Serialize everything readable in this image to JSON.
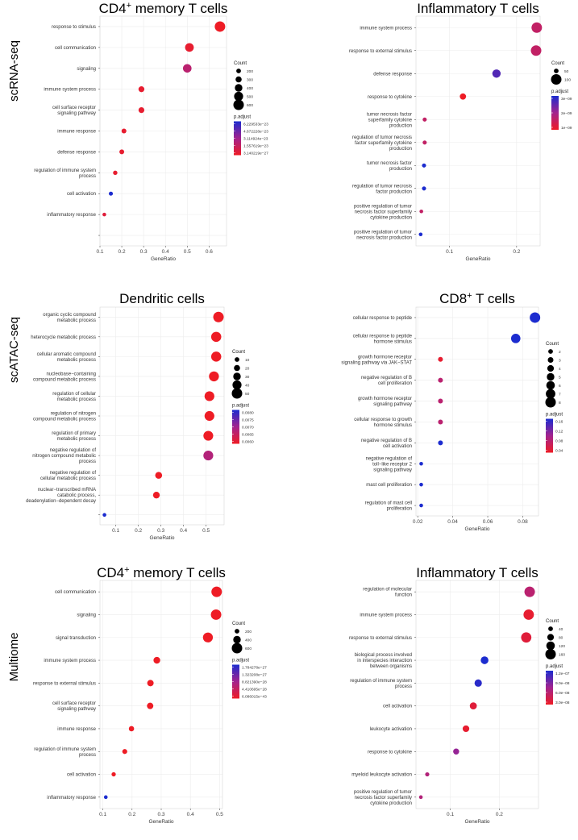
{
  "row_labels": [
    "scRNA-seq",
    "scATAC-seq",
    "Multiome"
  ],
  "colors": {
    "low_padj": "#ee1c25",
    "mid_padj": "#a3238e",
    "high_padj": "#1c2ccf"
  },
  "chart_data": [
    {
      "type": "scatter",
      "row": "scRNA-seq",
      "title": "CD4+ memory T cells",
      "title_main": "CD4",
      "title_sup": "+",
      "title_rest": " memory T cells",
      "xlabel": "GeneRatio",
      "xlim": [
        0.1,
        0.68
      ],
      "xticks": [
        0.1,
        0.2,
        0.3,
        0.4,
        0.5,
        0.6
      ],
      "tick_labels": [
        "0.1",
        "0.2",
        "0.3",
        "0.4",
        "0.5",
        "0.6"
      ],
      "categories": [
        [
          "response to stimulus"
        ],
        [
          "cell communication"
        ],
        [
          "signaling"
        ],
        [
          "immune system process"
        ],
        [
          "cell surface receptor",
          "signaling pathway"
        ],
        [
          "immune response"
        ],
        [
          "defense response"
        ],
        [
          "regulation of immune system",
          "process"
        ],
        [
          "cell activation"
        ],
        [
          "inflammatory response"
        ],
        [
          ""
        ]
      ],
      "x": [
        0.65,
        0.51,
        0.5,
        0.29,
        0.29,
        0.21,
        0.2,
        0.17,
        0.15,
        0.12
      ],
      "count": [
        650,
        510,
        500,
        290,
        285,
        210,
        205,
        170,
        150,
        120
      ],
      "padj_level": [
        0.0,
        0.05,
        0.35,
        0.05,
        0.05,
        0.05,
        0.05,
        0.05,
        1.0,
        0.1
      ],
      "legend": {
        "count_title": "Count",
        "count_labels": [
          "200",
          "300",
          "400",
          "500",
          "600"
        ],
        "padj_title": "p.adjust",
        "padj_labels": [
          "6.229533e−23",
          "4.672228e−23",
          "3.114924e−23",
          "1.557619e−23",
          "3.140219e−27"
        ]
      }
    },
    {
      "type": "scatter",
      "row": "scRNA-seq",
      "title": "Inflammatory T cells",
      "title_main": "Inflammatory T cells",
      "title_sup": "",
      "title_rest": "",
      "xlabel": "GeneRatio",
      "xlim": [
        0.05,
        0.235
      ],
      "xticks": [
        0.1,
        0.2
      ],
      "tick_labels": [
        "0.1",
        "0.2"
      ],
      "categories": [
        [
          "immune system process"
        ],
        [
          "response to external stimulus"
        ],
        [
          "defense response"
        ],
        [
          "response to cytokine"
        ],
        [
          "tumor necrosis factor",
          "superfamily cytokine",
          "production"
        ],
        [
          "regulation of tumor necrosis",
          "factor superfamily cytokine",
          "production"
        ],
        [
          "tumor necrosis factor",
          "production"
        ],
        [
          "regulation of tumor necrosis",
          "factor production"
        ],
        [
          "positive regulation of tumor",
          "necrosis factor superfamily",
          "cytokine production"
        ],
        [
          "positive regulation of tumor",
          "necrosis factor production"
        ]
      ],
      "x": [
        0.23,
        0.229,
        0.17,
        0.12,
        0.063,
        0.063,
        0.062,
        0.062,
        0.058,
        0.057
      ],
      "count": [
        110,
        110,
        85,
        60,
        35,
        35,
        35,
        35,
        30,
        30
      ],
      "padj_level": [
        0.3,
        0.3,
        0.8,
        0.0,
        0.3,
        0.3,
        1.0,
        1.0,
        0.3,
        1.0
      ],
      "legend": {
        "count_title": "Count",
        "count_labels": [
          "50",
          "100"
        ],
        "padj_title": "p.adjust",
        "padj_labels": [
          "3e−09",
          "2e−09",
          "1e−09"
        ]
      }
    },
    {
      "type": "scatter",
      "row": "scATAC-seq",
      "title": "Dendritic cells",
      "title_main": "Dendritic cells",
      "title_sup": "",
      "title_rest": "",
      "xlabel": "GeneRatio",
      "xlim": [
        0.03,
        0.58
      ],
      "xticks": [
        0.1,
        0.2,
        0.3,
        0.4,
        0.5
      ],
      "tick_labels": [
        "0.1",
        "0.2",
        "0.3",
        "0.4",
        "0.5"
      ],
      "categories": [
        [
          "organic cyclic compound",
          "metabolic process"
        ],
        [
          "heterocycle metabolic process"
        ],
        [
          "cellular aromatic compound",
          "metabolic process"
        ],
        [
          "nucleobase−containing",
          "compound metabolic process"
        ],
        [
          "regulation of cellular",
          "metabolic process"
        ],
        [
          "regulation of nitrogen",
          "compound metabolic process"
        ],
        [
          "regulation of primary",
          "metabolic process"
        ],
        [
          "negative regulation of",
          "nitrogen compound metabolic",
          "process"
        ],
        [
          "negative regulation of",
          "cellular metabolic process"
        ],
        [
          "nuclear−transcribed mRNA",
          "catabolic process,",
          "deadenylation−dependent decay"
        ],
        [
          ""
        ]
      ],
      "x": [
        0.555,
        0.545,
        0.545,
        0.535,
        0.515,
        0.515,
        0.51,
        0.51,
        0.29,
        0.28,
        0.05
      ],
      "count": [
        55,
        52,
        52,
        51,
        50,
        50,
        50,
        50,
        28,
        27,
        4
      ],
      "padj_level": [
        0.0,
        0.0,
        0.0,
        0.0,
        0.0,
        0.0,
        0.0,
        0.4,
        0.0,
        0.0,
        1.0
      ],
      "legend": {
        "count_title": "Count",
        "count_labels": [
          "10",
          "20",
          "30",
          "40",
          "50"
        ],
        "padj_title": "p.adjust",
        "padj_labels": [
          "0.0080",
          "0.0075",
          "0.0070",
          "0.0065",
          "0.0060"
        ]
      }
    },
    {
      "type": "scatter",
      "row": "scATAC-seq",
      "title": "CD8+ T cells",
      "title_main": "CD8",
      "title_sup": "+",
      "title_rest": " T cells",
      "xlabel": "GeneRatio",
      "xlim": [
        0.019,
        0.089
      ],
      "xticks": [
        0.02,
        0.04,
        0.06,
        0.08
      ],
      "tick_labels": [
        "0.02",
        "0.04",
        "0.06",
        "0.08"
      ],
      "categories": [
        [
          "cellular response to peptide"
        ],
        [
          "cellular response to peptide",
          "hormone stimulus"
        ],
        [
          "growth hormone receptor",
          "signaling pathway via JAK−STAT"
        ],
        [
          "negative regulation of B",
          "cell proliferation"
        ],
        [
          "growth hormone receptor",
          "signaling pathway"
        ],
        [
          "cellular response to growth",
          "hormone stimulus"
        ],
        [
          "negative regulation of B",
          "cell activation"
        ],
        [
          "negative regulation of",
          "toll−like receptor 2",
          "signaling pathway"
        ],
        [
          "mast cell proliferation"
        ],
        [
          "regulation of mast cell",
          "proliferation"
        ]
      ],
      "x": [
        0.087,
        0.076,
        0.033,
        0.033,
        0.033,
        0.033,
        0.033,
        0.022,
        0.022,
        0.022
      ],
      "count": [
        8,
        7,
        3,
        3,
        3,
        3,
        3,
        2,
        2,
        2
      ],
      "padj_level": [
        1.0,
        1.0,
        0.05,
        0.35,
        0.35,
        0.35,
        1.0,
        1.0,
        1.0,
        1.0
      ],
      "legend": {
        "count_title": "Count",
        "count_labels": [
          "2",
          "3",
          "4",
          "5",
          "6",
          "7",
          "8"
        ],
        "padj_title": "p.adjust",
        "padj_labels": [
          "0.16",
          "0.12",
          "0.08",
          "0.04"
        ]
      }
    },
    {
      "type": "scatter",
      "row": "Multiome",
      "title": "CD4+ memory T cells",
      "title_main": "CD4",
      "title_sup": "+",
      "title_rest": " memory T cells",
      "xlabel": "GeneRatio",
      "xlim": [
        0.09,
        0.51
      ],
      "xticks": [
        0.1,
        0.2,
        0.3,
        0.4,
        0.5
      ],
      "tick_labels": [
        "0.1",
        "0.2",
        "0.3",
        "0.4",
        "0.5"
      ],
      "categories": [
        [
          "cell communication"
        ],
        [
          "signaling"
        ],
        [
          "signal transduction"
        ],
        [
          "immune system process"
        ],
        [
          "response to external stimulus"
        ],
        [
          "cell surface receptor",
          "signaling pathway"
        ],
        [
          "immune response"
        ],
        [
          "regulation of immune system",
          "process"
        ],
        [
          "cell activation"
        ],
        [
          "inflammatory response"
        ]
      ],
      "x": [
        0.49,
        0.488,
        0.46,
        0.285,
        0.263,
        0.262,
        0.198,
        0.175,
        0.137,
        0.11
      ],
      "count": [
        760,
        755,
        710,
        430,
        400,
        400,
        300,
        270,
        210,
        160
      ],
      "padj_level": [
        0.0,
        0.0,
        0.0,
        0.0,
        0.0,
        0.0,
        0.0,
        0.0,
        0.0,
        1.0
      ],
      "legend": {
        "count_title": "Count",
        "count_labels": [
          "200",
          "400",
          "600"
        ],
        "padj_title": "p.adjust",
        "padj_labels": [
          "1.784278e−27",
          "1.323208e−27",
          "8.821390e−28",
          "4.410695e−28",
          "6.086015e−43"
        ]
      }
    },
    {
      "type": "scatter",
      "row": "Multiome",
      "title": "Inflammatory T cells",
      "title_main": "Inflammatory T cells",
      "title_sup": "",
      "title_rest": "",
      "xlabel": "GeneRatio",
      "xlim": [
        0.03,
        0.28
      ],
      "xticks": [
        0.1,
        0.2
      ],
      "tick_labels": [
        "0.1",
        "0.2"
      ],
      "categories": [
        [
          "regulation of molecular",
          "function"
        ],
        [
          "immune system process"
        ],
        [
          "response to external stimulus"
        ],
        [
          "biological process involved",
          "in interspecies interaction",
          "between organisms"
        ],
        [
          "regulation of immune system",
          "process"
        ],
        [
          "cell activation"
        ],
        [
          "leukocyte activation"
        ],
        [
          "response to cytokine"
        ],
        [
          "myeloid leukocyte activation"
        ],
        [
          "positive regulation of tumor",
          "necrosis factor superfamily",
          "cytokine production"
        ]
      ],
      "x": [
        0.262,
        0.26,
        0.255,
        0.17,
        0.157,
        0.147,
        0.132,
        0.112,
        0.053,
        0.04
      ],
      "count": [
        165,
        163,
        160,
        108,
        100,
        94,
        85,
        72,
        35,
        25
      ],
      "padj_level": [
        0.35,
        0.05,
        0.1,
        1.0,
        0.95,
        0.1,
        0.05,
        0.55,
        0.4,
        0.4
      ],
      "legend": {
        "count_title": "Count",
        "count_labels": [
          "40",
          "80",
          "120",
          "160"
        ],
        "padj_title": "p.adjust",
        "padj_labels": [
          "1.2e−07",
          "9.0e−08",
          "6.0e−08",
          "3.0e−08"
        ]
      }
    }
  ]
}
